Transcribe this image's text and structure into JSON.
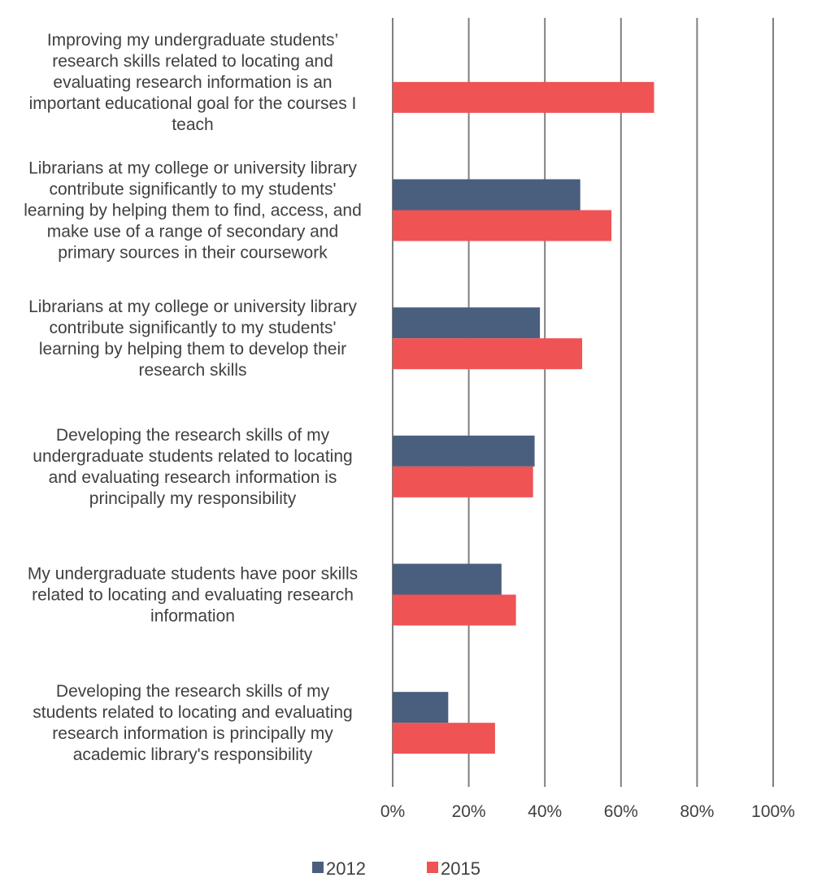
{
  "chart_data": {
    "type": "bar",
    "orientation": "horizontal",
    "title": "",
    "xlabel": "",
    "ylabel": "",
    "xlim": [
      0,
      100
    ],
    "ticks": [
      "0%",
      "20%",
      "40%",
      "60%",
      "80%",
      "100%"
    ],
    "tick_values": [
      0,
      20,
      40,
      60,
      80,
      100
    ],
    "grid": true,
    "legend_position": "bottom",
    "categories": [
      [
        "Improving my undergraduate students’",
        "research skills related to locating and",
        "evaluating research information is an",
        "important educational goal for the courses I",
        "teach"
      ],
      [
        "Librarians at my college or university library",
        "contribute significantly to my students'",
        "learning by helping them to find, access, and",
        "make use of a range of secondary and",
        "primary sources in their coursework"
      ],
      [
        "Librarians at my college or university library",
        "contribute significantly to my students'",
        "learning by helping them to develop their",
        "research skills"
      ],
      [
        "Developing the research skills of my",
        "undergraduate students related to locating",
        "and evaluating research information is",
        "principally my responsibility"
      ],
      [
        "My undergraduate students have poor skills",
        "related to locating and evaluating research",
        "information"
      ],
      [
        "Developing the research skills of my",
        "students related to locating and evaluating",
        "research information is principally my",
        "academic library's responsibility"
      ]
    ],
    "series": [
      {
        "name": "2012",
        "color": "#4a5f7e",
        "values": [
          null,
          49.3,
          38.7,
          37.3,
          28.6,
          14.6
        ]
      },
      {
        "name": "2015",
        "color": "#ef5354",
        "values": [
          68.7,
          57.5,
          49.8,
          36.9,
          32.4,
          26.9
        ]
      }
    ]
  }
}
